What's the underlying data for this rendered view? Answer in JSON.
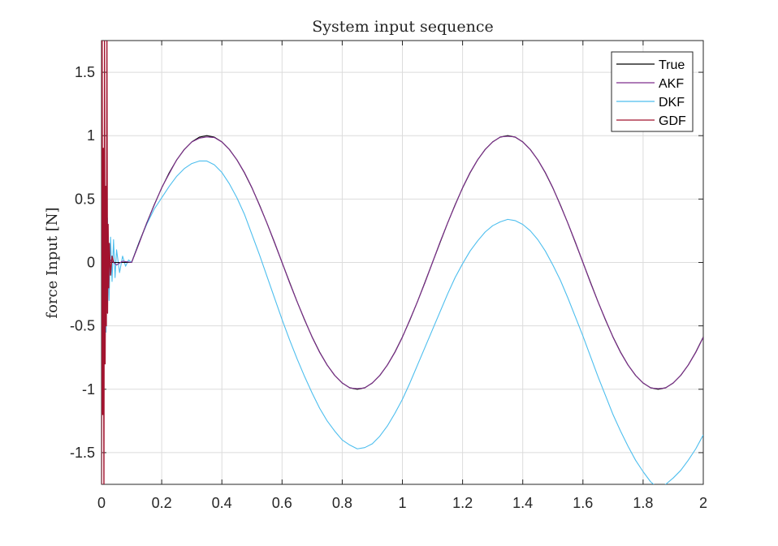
{
  "chart_data": {
    "type": "line",
    "title": "System input sequence",
    "xlabel": "",
    "ylabel": "force Input [N]",
    "xlim": [
      0,
      2
    ],
    "ylim": [
      -1.75,
      1.75
    ],
    "xticks": [
      0,
      0.2,
      0.4,
      0.6,
      0.8,
      1,
      1.2,
      1.4,
      1.6,
      1.8,
      2
    ],
    "xtick_labels": [
      "0",
      "0.2",
      "0.4",
      "0.6",
      "0.8",
      "1",
      "1.2",
      "1.4",
      "1.6",
      "1.8",
      "2"
    ],
    "yticks": [
      1.5,
      1,
      0.5,
      0,
      -0.5,
      -1,
      -1.5
    ],
    "ytick_labels": [
      "1.5",
      "1",
      "0.5",
      "0",
      "-0.5",
      "-1",
      "-1.5"
    ],
    "grid": true,
    "legend_position": "top-right",
    "series": [
      {
        "name": "True",
        "color": "#000000",
        "x": [
          0,
          0.1,
          0.125,
          0.15,
          0.175,
          0.2,
          0.225,
          0.25,
          0.275,
          0.3,
          0.325,
          0.35,
          0.375,
          0.4,
          0.425,
          0.45,
          0.475,
          0.5,
          0.525,
          0.55,
          0.575,
          0.6,
          0.625,
          0.65,
          0.675,
          0.7,
          0.725,
          0.75,
          0.775,
          0.8,
          0.825,
          0.85,
          0.875,
          0.9,
          0.925,
          0.95,
          0.975,
          1,
          1.025,
          1.05,
          1.075,
          1.1,
          1.125,
          1.15,
          1.175,
          1.2,
          1.225,
          1.25,
          1.275,
          1.3,
          1.325,
          1.35,
          1.375,
          1.4,
          1.425,
          1.45,
          1.475,
          1.5,
          1.525,
          1.55,
          1.575,
          1.6,
          1.625,
          1.65,
          1.675,
          1.7,
          1.725,
          1.75,
          1.775,
          1.8,
          1.825,
          1.85,
          1.875,
          1.9,
          1.925,
          1.95,
          1.975,
          2
        ],
        "y": [
          0,
          0,
          0.156,
          0.309,
          0.454,
          0.588,
          0.707,
          0.809,
          0.891,
          0.951,
          0.988,
          1,
          0.988,
          0.951,
          0.891,
          0.809,
          0.707,
          0.588,
          0.454,
          0.309,
          0.156,
          0,
          -0.156,
          -0.309,
          -0.454,
          -0.588,
          -0.707,
          -0.809,
          -0.891,
          -0.951,
          -0.988,
          -1,
          -0.988,
          -0.951,
          -0.891,
          -0.809,
          -0.707,
          -0.588,
          -0.454,
          -0.309,
          -0.156,
          0,
          0.156,
          0.309,
          0.454,
          0.588,
          0.707,
          0.809,
          0.891,
          0.951,
          0.988,
          1,
          0.988,
          0.951,
          0.891,
          0.809,
          0.707,
          0.588,
          0.454,
          0.309,
          0.156,
          0,
          -0.156,
          -0.309,
          -0.454,
          -0.588,
          -0.707,
          -0.809,
          -0.891,
          -0.951,
          -0.988,
          -1,
          -0.988,
          -0.951,
          -0.891,
          -0.809,
          -0.707,
          -0.588
        ]
      },
      {
        "name": "AKF",
        "color": "#7e2f8e",
        "x": [
          0,
          0.004,
          0.008,
          0.012,
          0.016,
          0.02,
          0.03,
          0.05,
          0.07,
          0.1,
          0.125,
          0.15,
          0.175,
          0.2,
          0.225,
          0.25,
          0.275,
          0.3,
          0.325,
          0.35,
          0.375,
          0.4,
          0.425,
          0.45,
          0.475,
          0.5,
          0.525,
          0.55,
          0.575,
          0.6,
          0.625,
          0.65,
          0.675,
          0.7,
          0.725,
          0.75,
          0.775,
          0.8,
          0.825,
          0.85,
          0.875,
          0.9,
          0.925,
          0.95,
          0.975,
          1,
          1.025,
          1.05,
          1.075,
          1.1,
          1.125,
          1.15,
          1.175,
          1.2,
          1.225,
          1.25,
          1.275,
          1.3,
          1.325,
          1.35,
          1.375,
          1.4,
          1.425,
          1.45,
          1.475,
          1.5,
          1.525,
          1.55,
          1.575,
          1.6,
          1.625,
          1.65,
          1.675,
          1.7,
          1.725,
          1.75,
          1.775,
          1.8,
          1.825,
          1.85,
          1.875,
          1.9,
          1.925,
          1.95,
          1.975,
          2
        ],
        "y": [
          1.2,
          -1.0,
          0.8,
          -0.6,
          0.3,
          -0.1,
          0.02,
          -0.02,
          0.01,
          0,
          0.15,
          0.31,
          0.45,
          0.59,
          0.7,
          0.81,
          0.89,
          0.95,
          0.98,
          0.99,
          0.985,
          0.95,
          0.89,
          0.81,
          0.71,
          0.59,
          0.45,
          0.31,
          0.16,
          0,
          -0.16,
          -0.31,
          -0.45,
          -0.59,
          -0.71,
          -0.81,
          -0.89,
          -0.95,
          -0.99,
          -0.995,
          -0.99,
          -0.95,
          -0.89,
          -0.81,
          -0.71,
          -0.59,
          -0.45,
          -0.31,
          -0.16,
          0,
          0.16,
          0.31,
          0.45,
          0.59,
          0.71,
          0.81,
          0.89,
          0.95,
          0.99,
          0.995,
          0.99,
          0.95,
          0.89,
          0.81,
          0.71,
          0.59,
          0.45,
          0.31,
          0.16,
          0,
          -0.16,
          -0.31,
          -0.45,
          -0.59,
          -0.71,
          -0.81,
          -0.89,
          -0.95,
          -0.99,
          -0.995,
          -0.99,
          -0.95,
          -0.89,
          -0.81,
          -0.71,
          -0.59
        ]
      },
      {
        "name": "DKF",
        "color": "#4dbeee",
        "x": [
          0,
          0.005,
          0.01,
          0.015,
          0.02,
          0.025,
          0.03,
          0.035,
          0.04,
          0.045,
          0.05,
          0.06,
          0.07,
          0.08,
          0.09,
          0.1,
          0.125,
          0.15,
          0.175,
          0.2,
          0.225,
          0.25,
          0.275,
          0.3,
          0.325,
          0.35,
          0.375,
          0.4,
          0.425,
          0.45,
          0.475,
          0.5,
          0.525,
          0.55,
          0.575,
          0.6,
          0.625,
          0.65,
          0.675,
          0.7,
          0.725,
          0.75,
          0.775,
          0.8,
          0.825,
          0.85,
          0.875,
          0.9,
          0.925,
          0.95,
          0.975,
          1,
          1.025,
          1.05,
          1.075,
          1.1,
          1.125,
          1.15,
          1.175,
          1.2,
          1.225,
          1.25,
          1.275,
          1.3,
          1.325,
          1.35,
          1.375,
          1.4,
          1.425,
          1.45,
          1.475,
          1.5,
          1.525,
          1.55,
          1.575,
          1.6,
          1.625,
          1.65,
          1.675,
          1.7,
          1.725,
          1.75,
          1.775,
          1.8,
          1.825,
          1.85,
          1.875,
          1.9,
          1.925,
          1.95,
          1.975,
          2
        ],
        "y": [
          0,
          -0.8,
          0.6,
          -0.55,
          0.35,
          -0.3,
          0.2,
          -0.15,
          0.18,
          -0.12,
          0.1,
          -0.08,
          0.05,
          -0.03,
          0.02,
          0,
          0.16,
          0.3,
          0.42,
          0.51,
          0.6,
          0.68,
          0.74,
          0.78,
          0.8,
          0.8,
          0.77,
          0.71,
          0.62,
          0.51,
          0.38,
          0.22,
          0.06,
          -0.11,
          -0.28,
          -0.45,
          -0.61,
          -0.76,
          -0.9,
          -1.03,
          -1.15,
          -1.25,
          -1.33,
          -1.4,
          -1.44,
          -1.47,
          -1.46,
          -1.43,
          -1.37,
          -1.29,
          -1.19,
          -1.08,
          -0.95,
          -0.81,
          -0.67,
          -0.53,
          -0.39,
          -0.25,
          -0.12,
          -0.01,
          0.09,
          0.17,
          0.24,
          0.29,
          0.32,
          0.34,
          0.33,
          0.3,
          0.25,
          0.18,
          0.09,
          -0.02,
          -0.14,
          -0.28,
          -0.43,
          -0.58,
          -0.74,
          -0.9,
          -1.05,
          -1.2,
          -1.33,
          -1.45,
          -1.56,
          -1.65,
          -1.73,
          -1.78,
          -1.75,
          -1.7,
          -1.64,
          -1.56,
          -1.47,
          -1.36
        ]
      },
      {
        "name": "GDF",
        "color": "#a2142f",
        "x": [
          0,
          0.002,
          0.004,
          0.006,
          0.008,
          0.01,
          0.012,
          0.014,
          0.016,
          0.018,
          0.02,
          0.022,
          0.024,
          0.026,
          0.03,
          0.035,
          0.04
        ],
        "y": [
          -1.75,
          1.75,
          -1.2,
          0.9,
          -1.75,
          1.75,
          -0.8,
          0.6,
          -0.5,
          1.75,
          -0.4,
          0.3,
          -0.2,
          0.15,
          -0.1,
          0.05,
          0
        ]
      }
    ]
  }
}
